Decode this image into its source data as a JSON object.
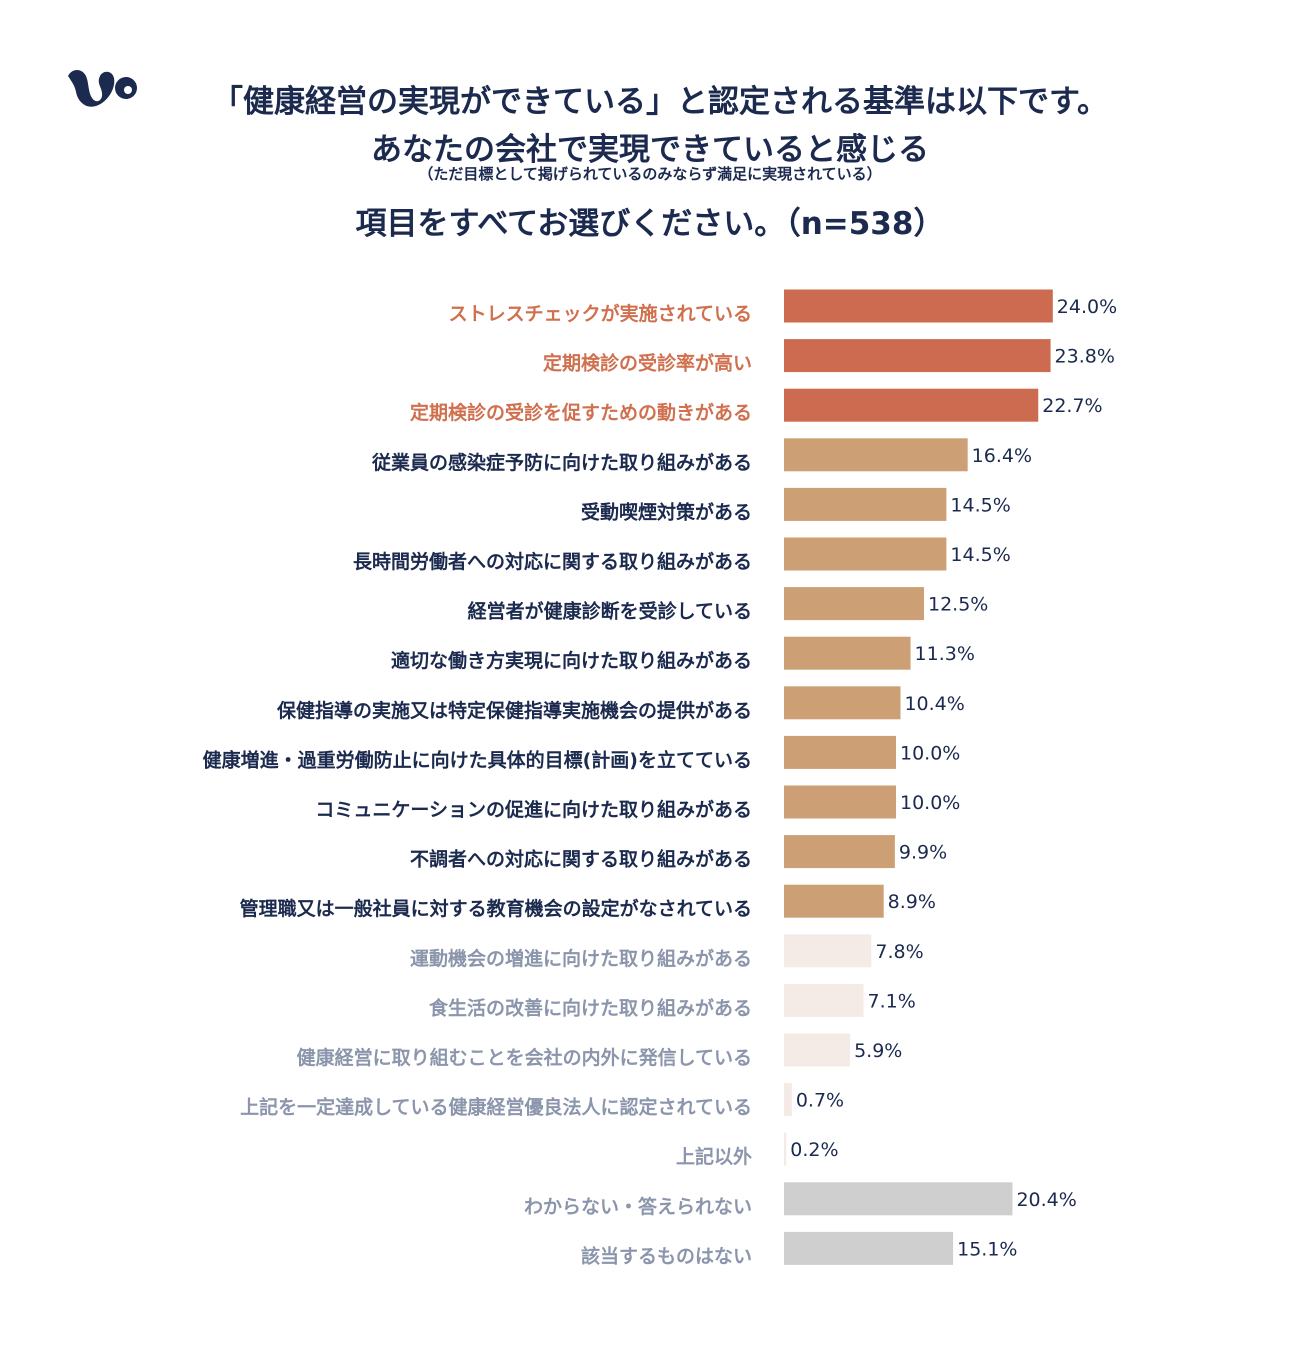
{
  "header": {
    "title_line1": "「健康経営の実現ができている」と認定される基準は以下です。",
    "title_line2": "あなたの会社で実現できていると感じる",
    "title_note": "（ただ目標として掲げられているのみならず満足に実現されている）",
    "title_line3": "項目をすべてお選びください。（n=538）"
  },
  "colors": {
    "highlight": "#cc6b4f",
    "standard": "#cd9f74",
    "minor": "#f4ebe6",
    "other": "#cfcfcf",
    "label_highlight": "#d0704e",
    "label_standard": "#1b2a4e",
    "label_minor": "#8b95ab",
    "logo": "#1b2a4e"
  },
  "chart_data": {
    "type": "bar",
    "orientation": "horizontal",
    "unit": "%",
    "xlim": [
      0,
      35
    ],
    "categories": [
      "ストレスチェックが実施されている",
      "定期検診の受診率が高い",
      "定期検診の受診を促すための動きがある",
      "従業員の感染症予防に向けた取り組みがある",
      "受動喫煙対策がある",
      "長時間労働者への対応に関する取り組みがある",
      "経営者が健康診断を受診している",
      "適切な働き方実現に向けた取り組みがある",
      "保健指導の実施又は特定保健指導実施機会の提供がある",
      "健康増進・過重労働防止に向けた具体的目標(計画)を立てている",
      "コミュニケーションの促進に向けた取り組みがある",
      "不調者への対応に関する取り組みがある",
      "管理職又は一般社員に対する教育機会の設定がなされている",
      "運動機会の増進に向けた取り組みがある",
      "食生活の改善に向けた取り組みがある",
      "健康経営に取り組むことを会社の内外に発信している",
      "上記を一定達成している健康経営優良法人に認定されている",
      "上記以外",
      "わからない・答えられない",
      "該当するものはない"
    ],
    "values": [
      24.0,
      23.8,
      22.7,
      16.4,
      14.5,
      14.5,
      12.5,
      11.3,
      10.4,
      10.0,
      10.0,
      9.9,
      8.9,
      7.8,
      7.1,
      5.9,
      0.7,
      0.2,
      20.4,
      15.1
    ],
    "value_labels": [
      "24.0%",
      "23.8%",
      "22.7%",
      "16.4%",
      "14.5%",
      "14.5%",
      "12.5%",
      "11.3%",
      "10.4%",
      "10.0%",
      "10.0%",
      "9.9%",
      "8.9%",
      "7.8%",
      "7.1%",
      "5.9%",
      "0.7%",
      "0.2%",
      "20.4%",
      "15.1%"
    ],
    "groups": [
      "highlight",
      "highlight",
      "highlight",
      "standard",
      "standard",
      "standard",
      "standard",
      "standard",
      "standard",
      "standard",
      "standard",
      "standard",
      "standard",
      "minor",
      "minor",
      "minor",
      "minor",
      "minor",
      "other",
      "other"
    ]
  }
}
